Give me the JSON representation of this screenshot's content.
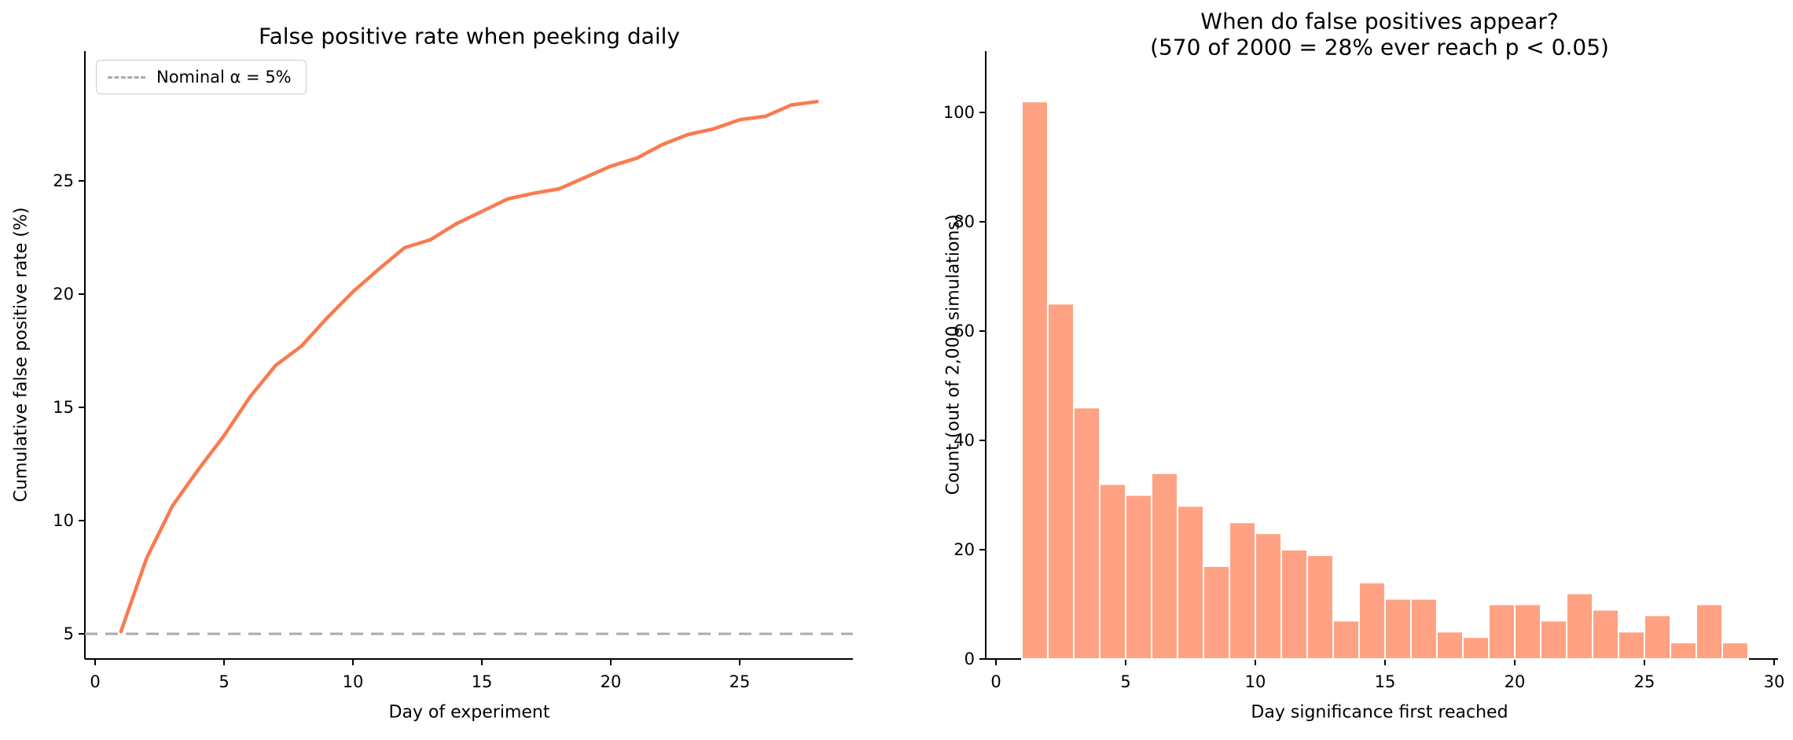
{
  "figure": {
    "background": "#ffffff",
    "text_color": "#000000",
    "accent_line_color": "#fa7a4f",
    "bar_fill_color": "#ffa283",
    "bar_edge_color": "#ffffff",
    "reference_line_color": "#ababab",
    "spine_color": "#000000"
  },
  "chart_data": [
    {
      "type": "line",
      "title": "False positive rate when peeking daily",
      "xlabel": "Day of experiment",
      "ylabel": "Cumulative false positive rate (%)",
      "legend": {
        "position": "upper-left",
        "entries": [
          {
            "label": "Nominal α = 5%",
            "style": "dashed",
            "color": "#ababab"
          }
        ]
      },
      "x": [
        1,
        2,
        3,
        4,
        5,
        6,
        7,
        8,
        9,
        10,
        11,
        12,
        13,
        14,
        15,
        16,
        17,
        18,
        19,
        20,
        21,
        22,
        23,
        24,
        25,
        26,
        27,
        28
      ],
      "values": [
        5.1,
        8.35,
        10.65,
        12.25,
        13.75,
        15.45,
        16.85,
        17.7,
        18.95,
        20.1,
        21.1,
        22.05,
        22.4,
        23.1,
        23.65,
        24.2,
        24.45,
        24.65,
        25.15,
        25.65,
        26.0,
        26.6,
        27.05,
        27.3,
        27.7,
        27.85,
        28.35,
        28.5
      ],
      "reference_line": {
        "value": 5,
        "label": "Nominal α = 5%"
      },
      "xticks": [
        0,
        5,
        10,
        15,
        20,
        25
      ],
      "yticks": [
        5,
        10,
        15,
        20,
        25
      ],
      "xlim": [
        -0.35,
        29.35
      ],
      "ylim": [
        3.9,
        30.7
      ],
      "grid": false,
      "line_color": "#fa7a4f"
    },
    {
      "type": "bar",
      "title_line1": "When do false positives appear?",
      "title_line2": "(570 of 2000 = 28% ever reach p < 0.05)",
      "xlabel": "Day significance first reached",
      "ylabel": "Count (out of 2,000 simulations)",
      "bin_left_edges": [
        1,
        2,
        3,
        4,
        5,
        6,
        7,
        8,
        9,
        10,
        11,
        12,
        13,
        14,
        15,
        16,
        17,
        18,
        19,
        20,
        21,
        22,
        23,
        24,
        25,
        26,
        27,
        28
      ],
      "bin_width": 1,
      "values": [
        102,
        65,
        46,
        32,
        30,
        34,
        28,
        17,
        25,
        23,
        20,
        19,
        7,
        14,
        11,
        11,
        5,
        4,
        10,
        10,
        7,
        12,
        9,
        5,
        8,
        3,
        10,
        3
      ],
      "total_simulations": 2000,
      "total_reaching_significance": 570,
      "xticks": [
        0,
        5,
        10,
        15,
        20,
        25,
        30
      ],
      "yticks": [
        0,
        20,
        40,
        60,
        80,
        100
      ],
      "xlim": [
        -0.4,
        30.4
      ],
      "ylim": [
        0,
        111
      ],
      "grid": false,
      "bar_color": "#ffa283"
    }
  ]
}
